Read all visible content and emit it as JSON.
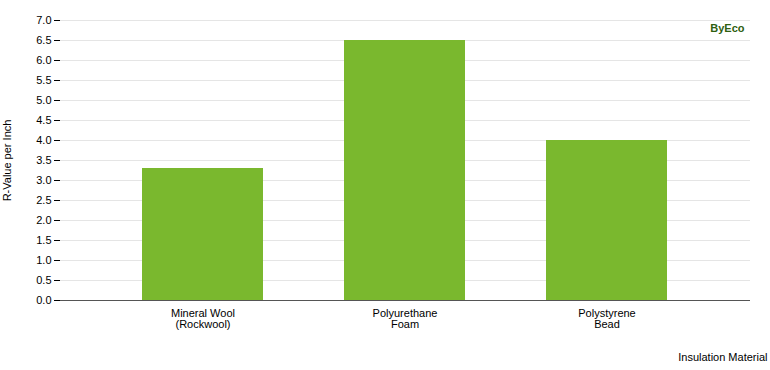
{
  "chart_data": {
    "type": "bar",
    "categories": [
      "Mineral Wool\n(Rockwool)",
      "Polyurethane\nFoam",
      "Polystyrene\nBead"
    ],
    "values": [
      3.3,
      6.5,
      4.0
    ],
    "color": "#7ab82e",
    "ylabel": "R-Value per Inch",
    "xlabel": "Insulation Material",
    "ylim": [
      0,
      7.0
    ],
    "yticks": [
      {
        "value": 0,
        "label": "0.0"
      },
      0.5,
      {
        "value": 1.0,
        "label": "1.0"
      },
      1.5,
      {
        "value": 2.0,
        "label": "2.0"
      },
      2.5,
      {
        "value": 3.0,
        "label": "3.0"
      },
      3.5,
      {
        "value": 4.0,
        "label": "4.0"
      },
      4.5,
      {
        "value": 5.0,
        "label": "5.0"
      },
      5.5,
      {
        "value": 6.0,
        "label": "6.0"
      },
      6.5,
      {
        "value": 7.0,
        "label": "7.0"
      }
    ],
    "grid": true,
    "annotations": [
      "ByEco"
    ]
  }
}
